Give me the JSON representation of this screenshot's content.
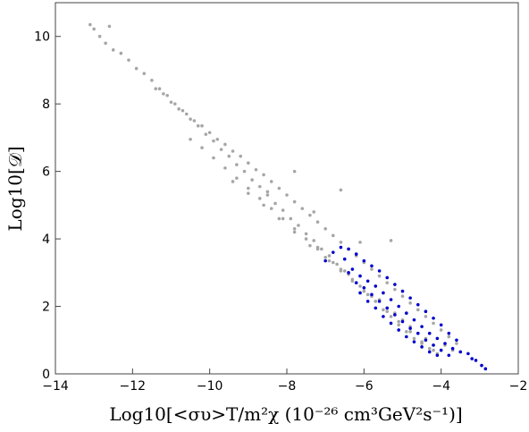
{
  "chart_data": {
    "type": "scatter",
    "title": "",
    "xlabel": "Log10[<συ>T/m²χ (10⁻²⁶ cm³GeV²s⁻¹)]",
    "ylabel": "Log10[𝒟]",
    "xlim": [
      -14,
      -2
    ],
    "ylim": [
      0,
      11
    ],
    "x_ticks": [
      "-14",
      "-12",
      "-10",
      "-8",
      "-6",
      "-4",
      "-2"
    ],
    "y_ticks": [
      "0",
      "2",
      "4",
      "6",
      "8",
      "10"
    ],
    "grid": false,
    "legend": "none",
    "series": [
      {
        "color": "#a6a6a6",
        "marker": "small-dot",
        "points": [
          [
            -13.1,
            10.35
          ],
          [
            -13.0,
            10.22
          ],
          [
            -12.85,
            10.0
          ],
          [
            -12.6,
            10.3
          ],
          [
            -12.7,
            9.8
          ],
          [
            -12.5,
            9.6
          ],
          [
            -12.3,
            9.5
          ],
          [
            -12.1,
            9.3
          ],
          [
            -11.9,
            9.05
          ],
          [
            -11.7,
            8.9
          ],
          [
            -11.5,
            8.7
          ],
          [
            -11.3,
            8.45
          ],
          [
            -11.1,
            8.25
          ],
          [
            -10.9,
            8.0
          ],
          [
            -10.7,
            7.8
          ],
          [
            -10.5,
            7.55
          ],
          [
            -10.3,
            7.35
          ],
          [
            -10.1,
            7.1
          ],
          [
            -9.9,
            6.9
          ],
          [
            -9.7,
            6.65
          ],
          [
            -9.5,
            6.45
          ],
          [
            -9.3,
            6.2
          ],
          [
            -9.1,
            6.0
          ],
          [
            -8.9,
            5.75
          ],
          [
            -8.7,
            5.55
          ],
          [
            -8.5,
            5.3
          ],
          [
            -8.3,
            5.05
          ],
          [
            -8.1,
            4.85
          ],
          [
            -7.9,
            4.6
          ],
          [
            -7.7,
            4.4
          ],
          [
            -7.5,
            4.15
          ],
          [
            -7.3,
            3.95
          ],
          [
            -7.1,
            3.7
          ],
          [
            -6.9,
            3.5
          ],
          [
            -6.7,
            3.25
          ],
          [
            -6.5,
            3.05
          ],
          [
            -6.3,
            2.8
          ],
          [
            -6.1,
            2.6
          ],
          [
            -5.9,
            2.35
          ],
          [
            -5.7,
            2.15
          ],
          [
            -5.5,
            1.9
          ],
          [
            -5.3,
            1.7
          ],
          [
            -5.1,
            1.45
          ],
          [
            -4.9,
            1.25
          ],
          [
            -4.7,
            1.05
          ],
          [
            -4.5,
            0.9
          ],
          [
            -4.3,
            0.75
          ],
          [
            -4.1,
            0.6
          ],
          [
            -11.4,
            8.45
          ],
          [
            -11.2,
            8.3
          ],
          [
            -11.0,
            8.05
          ],
          [
            -10.8,
            7.85
          ],
          [
            -10.6,
            7.7
          ],
          [
            -10.4,
            7.5
          ],
          [
            -10.2,
            7.35
          ],
          [
            -10.0,
            7.15
          ],
          [
            -9.8,
            6.95
          ],
          [
            -9.6,
            6.8
          ],
          [
            -9.4,
            6.6
          ],
          [
            -9.2,
            6.45
          ],
          [
            -9.0,
            6.25
          ],
          [
            -8.8,
            6.05
          ],
          [
            -8.6,
            5.9
          ],
          [
            -8.4,
            5.7
          ],
          [
            -8.2,
            5.5
          ],
          [
            -8.0,
            5.3
          ],
          [
            -7.8,
            5.1
          ],
          [
            -7.6,
            4.9
          ],
          [
            -7.4,
            4.7
          ],
          [
            -7.2,
            4.5
          ],
          [
            -7.0,
            4.3
          ],
          [
            -6.8,
            4.1
          ],
          [
            -6.6,
            3.9
          ],
          [
            -6.4,
            3.7
          ],
          [
            -6.2,
            3.5
          ],
          [
            -6.0,
            3.3
          ],
          [
            -5.8,
            3.1
          ],
          [
            -5.6,
            2.9
          ],
          [
            -5.4,
            2.7
          ],
          [
            -5.2,
            2.5
          ],
          [
            -5.0,
            2.3
          ],
          [
            -4.8,
            2.1
          ],
          [
            -4.6,
            1.9
          ],
          [
            -4.4,
            1.7
          ],
          [
            -4.2,
            1.5
          ],
          [
            -4.0,
            1.3
          ],
          [
            -3.8,
            1.1
          ],
          [
            -3.6,
            0.9
          ],
          [
            -10.5,
            6.95
          ],
          [
            -10.2,
            6.7
          ],
          [
            -9.9,
            6.4
          ],
          [
            -9.6,
            6.1
          ],
          [
            -9.3,
            5.8
          ],
          [
            -9.0,
            5.5
          ],
          [
            -8.7,
            5.2
          ],
          [
            -8.4,
            4.9
          ],
          [
            -8.1,
            4.6
          ],
          [
            -7.8,
            4.3
          ],
          [
            -7.5,
            4.0
          ],
          [
            -7.2,
            3.7
          ],
          [
            -6.9,
            3.35
          ],
          [
            -6.6,
            3.05
          ],
          [
            -6.3,
            2.75
          ],
          [
            -6.0,
            2.45
          ],
          [
            -5.7,
            2.15
          ],
          [
            -5.4,
            1.85
          ],
          [
            -5.1,
            1.55
          ],
          [
            -4.8,
            1.25
          ],
          [
            -4.5,
            0.95
          ],
          [
            -4.2,
            0.7
          ],
          [
            -9.4,
            5.7
          ],
          [
            -9.0,
            5.35
          ],
          [
            -8.6,
            5.0
          ],
          [
            -8.2,
            4.6
          ],
          [
            -7.8,
            4.2
          ],
          [
            -7.4,
            3.8
          ],
          [
            -7.0,
            3.45
          ],
          [
            -6.6,
            3.1
          ],
          [
            -6.2,
            2.7
          ],
          [
            -5.8,
            2.3
          ],
          [
            -5.4,
            1.95
          ],
          [
            -5.0,
            1.6
          ],
          [
            -4.6,
            1.2
          ],
          [
            -4.2,
            0.85
          ],
          [
            -7.2,
            3.75
          ],
          [
            -6.8,
            3.3
          ],
          [
            -6.4,
            2.95
          ],
          [
            -6.0,
            2.55
          ],
          [
            -5.6,
            2.2
          ],
          [
            -5.2,
            1.8
          ],
          [
            -4.8,
            1.4
          ],
          [
            -4.4,
            1.05
          ],
          [
            -3.9,
            0.85
          ],
          [
            -3.7,
            0.7
          ],
          [
            -6.6,
            5.45
          ],
          [
            -5.3,
            3.95
          ],
          [
            -7.8,
            6.0
          ],
          [
            -8.5,
            5.4
          ],
          [
            -7.3,
            4.8
          ],
          [
            -6.1,
            3.9
          ]
        ]
      },
      {
        "color": "#0000cc",
        "marker": "small-dot",
        "points": [
          [
            -7.0,
            3.35
          ],
          [
            -6.8,
            3.6
          ],
          [
            -6.6,
            3.75
          ],
          [
            -6.4,
            3.7
          ],
          [
            -6.2,
            3.55
          ],
          [
            -6.0,
            3.35
          ],
          [
            -5.8,
            3.2
          ],
          [
            -5.6,
            3.05
          ],
          [
            -5.4,
            2.85
          ],
          [
            -5.2,
            2.65
          ],
          [
            -5.0,
            2.45
          ],
          [
            -4.8,
            2.25
          ],
          [
            -4.6,
            2.05
          ],
          [
            -4.4,
            1.85
          ],
          [
            -4.2,
            1.65
          ],
          [
            -4.0,
            1.45
          ],
          [
            -6.5,
            3.4
          ],
          [
            -6.3,
            3.1
          ],
          [
            -6.1,
            2.9
          ],
          [
            -5.9,
            2.75
          ],
          [
            -5.7,
            2.6
          ],
          [
            -5.5,
            2.4
          ],
          [
            -5.3,
            2.2
          ],
          [
            -5.1,
            2.0
          ],
          [
            -4.9,
            1.8
          ],
          [
            -4.7,
            1.6
          ],
          [
            -4.5,
            1.4
          ],
          [
            -4.3,
            1.2
          ],
          [
            -4.1,
            1.05
          ],
          [
            -3.9,
            0.9
          ],
          [
            -3.7,
            0.75
          ],
          [
            -3.5,
            0.65
          ],
          [
            -6.4,
            3.0
          ],
          [
            -6.2,
            2.7
          ],
          [
            -6.0,
            2.55
          ],
          [
            -5.8,
            2.35
          ],
          [
            -5.6,
            2.15
          ],
          [
            -5.4,
            1.95
          ],
          [
            -5.2,
            1.75
          ],
          [
            -5.0,
            1.55
          ],
          [
            -4.8,
            1.35
          ],
          [
            -4.6,
            1.2
          ],
          [
            -4.4,
            1.0
          ],
          [
            -4.2,
            0.85
          ],
          [
            -4.0,
            0.7
          ],
          [
            -3.8,
            0.55
          ],
          [
            -6.1,
            2.4
          ],
          [
            -5.9,
            2.15
          ],
          [
            -5.7,
            1.95
          ],
          [
            -5.5,
            1.7
          ],
          [
            -5.3,
            1.5
          ],
          [
            -5.1,
            1.3
          ],
          [
            -4.9,
            1.1
          ],
          [
            -4.7,
            0.95
          ],
          [
            -4.5,
            0.8
          ],
          [
            -4.3,
            0.65
          ],
          [
            -4.1,
            0.55
          ],
          [
            -3.8,
            1.2
          ],
          [
            -3.6,
            1.0
          ],
          [
            -3.3,
            0.6
          ],
          [
            -3.1,
            0.4
          ],
          [
            -2.95,
            0.25
          ],
          [
            -2.85,
            0.15
          ],
          [
            -3.2,
            0.45
          ]
        ]
      }
    ]
  }
}
